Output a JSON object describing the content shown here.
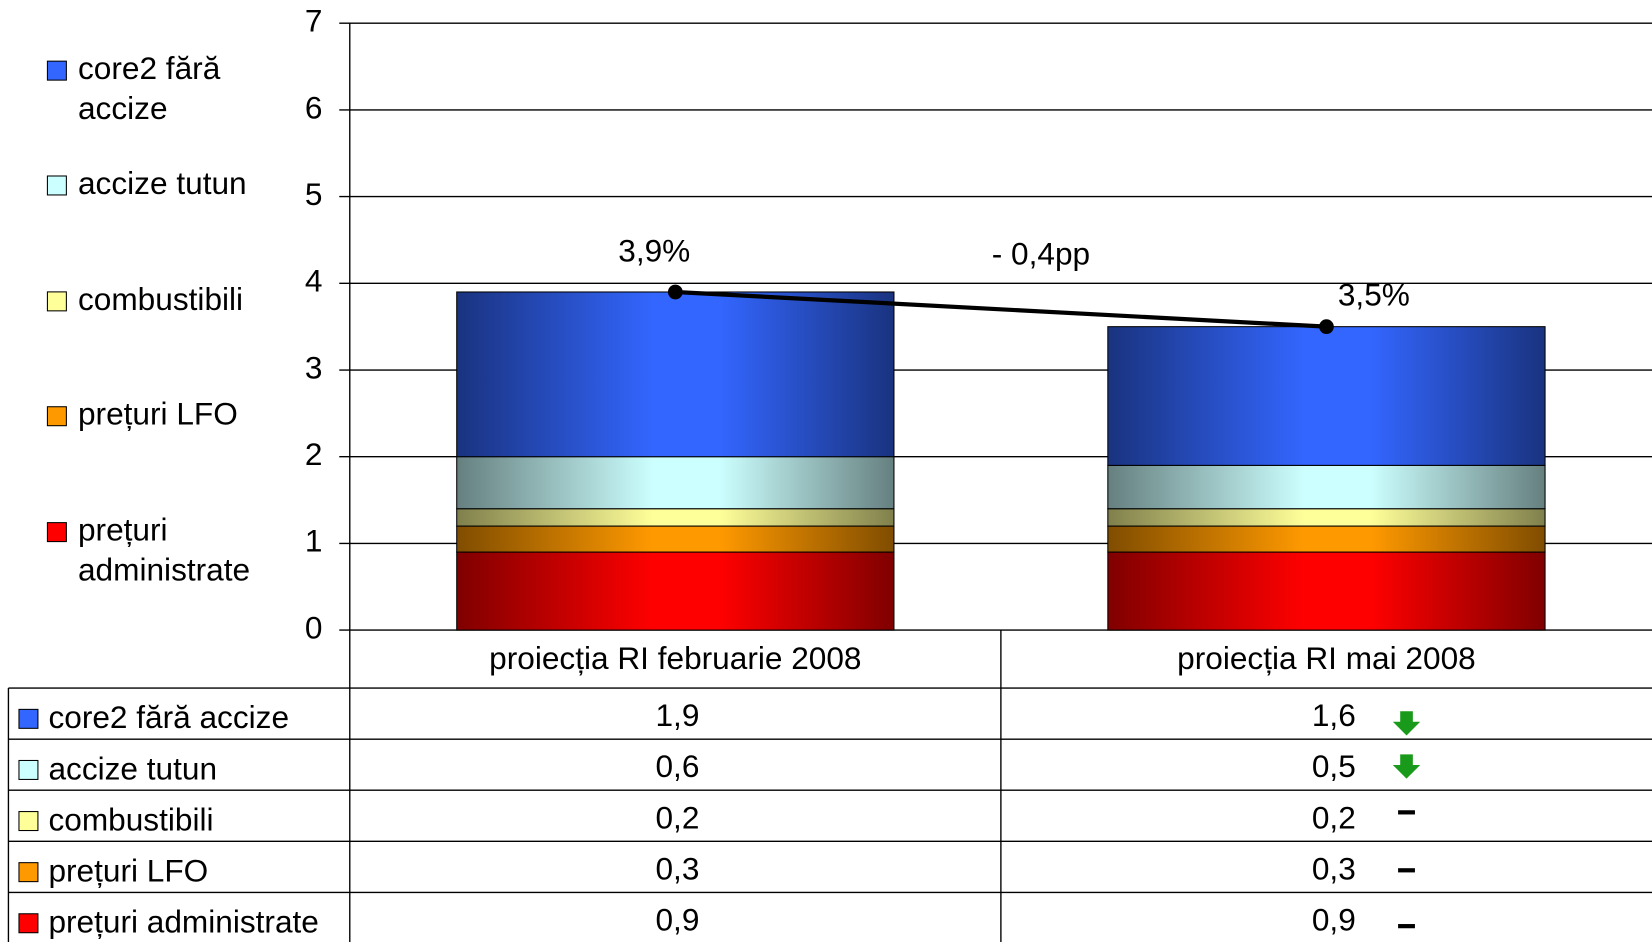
{
  "chart_data": {
    "type": "bar",
    "stacked": true,
    "categories": [
      "proiecția RI februarie 2008",
      "proiecția RI mai 2008"
    ],
    "series": [
      {
        "name": "prețuri administrate",
        "color": "#ff0000",
        "values": [
          0.9,
          0.9
        ],
        "value_labels": [
          "0,9",
          "0,9"
        ]
      },
      {
        "name": "prețuri LFO",
        "color": "#ff9900",
        "values": [
          0.3,
          0.3
        ],
        "value_labels": [
          "0,3",
          "0,3"
        ]
      },
      {
        "name": "combustibili",
        "color": "#ffff99",
        "values": [
          0.2,
          0.2
        ],
        "value_labels": [
          "0,2",
          "0,2"
        ]
      },
      {
        "name": "accize tutun",
        "color": "#ccffff",
        "values": [
          0.6,
          0.5
        ],
        "value_labels": [
          "0,6",
          "0,5"
        ]
      },
      {
        "name": "core2 fără accize",
        "color": "#3366ff",
        "values": [
          1.9,
          1.6
        ],
        "value_labels": [
          "1,9",
          "1,6"
        ]
      }
    ],
    "total_line": {
      "type": "line",
      "color": "#000000",
      "values": [
        3.9,
        3.5
      ],
      "value_labels": [
        "3,9%",
        "3,5%"
      ]
    },
    "annotation": "- 0,4pp",
    "ylim": [
      0,
      7
    ],
    "yticks": [
      0,
      1,
      2,
      3,
      4,
      5,
      6,
      7
    ],
    "grid": true,
    "legend": "left"
  }
}
